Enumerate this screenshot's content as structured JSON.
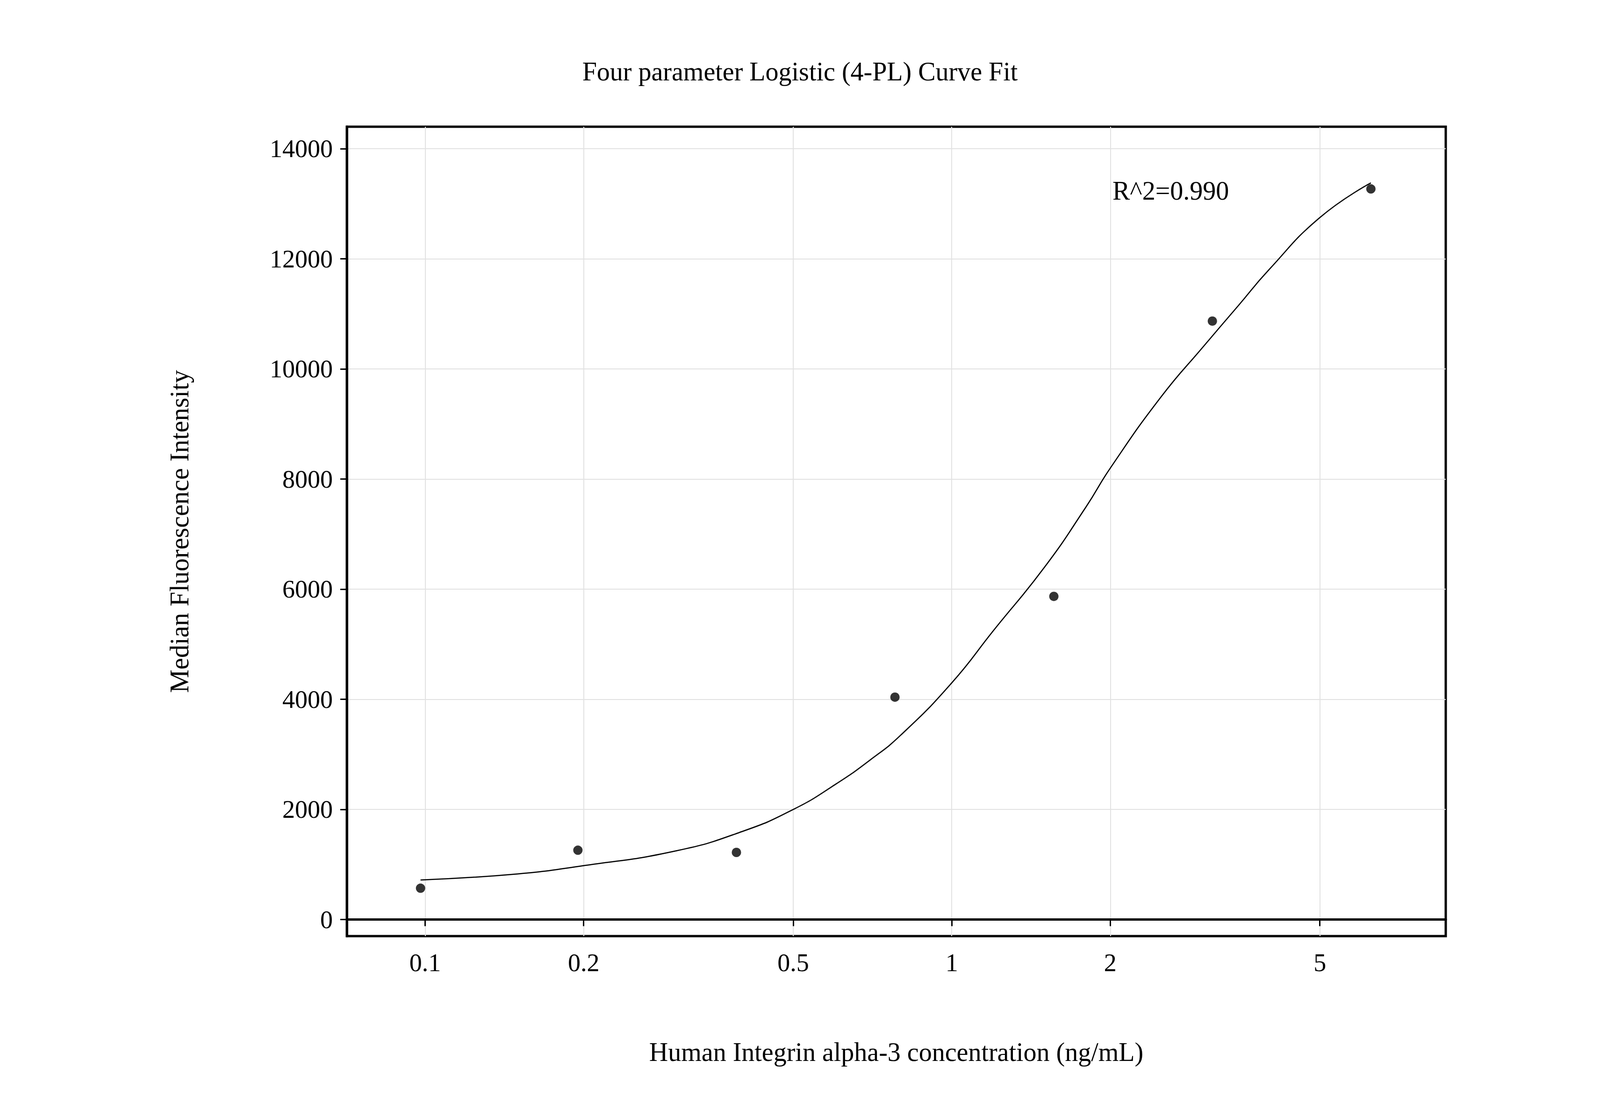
{
  "chart_data": {
    "type": "scatter",
    "title": "Four parameter Logistic (4-PL) Curve Fit",
    "x_label": "Human Integrin alpha-3 concentration (ng/mL)",
    "y_label": "Median Fluorescence Intensity",
    "annotation": "R^2=0.990",
    "log": "x",
    "grid": true,
    "xlim": [
      0.071,
      8.67
    ],
    "xticks": [
      0.1,
      0.2,
      0.5,
      1,
      2,
      5
    ],
    "ylim": [
      -300,
      14400
    ],
    "yticks": [
      0,
      2000,
      4000,
      6000,
      8000,
      10000,
      12000,
      14000
    ],
    "series": [
      {
        "type": "scatter",
        "color": "#000000",
        "marker": "circle",
        "x": [
          0.098,
          0.195,
          0.39,
          0.78,
          1.5625,
          3.125,
          6.25
        ],
        "values": [
          570,
          1260,
          1220,
          4040,
          5870,
          10870,
          13270
        ]
      },
      {
        "type": "line",
        "color": "#000000",
        "line_style": "solid",
        "x": [
          0.098,
          0.15,
          0.2,
          0.3,
          0.4,
          0.5,
          0.6,
          0.7,
          0.8,
          1,
          1.2,
          1.5,
          1.8,
          2,
          2.5,
          3,
          3.5,
          4,
          5,
          6.25
        ],
        "values": [
          720,
          830,
          980,
          1250,
          1600,
          2000,
          2450,
          2900,
          3350,
          4300,
          5250,
          6400,
          7500,
          8200,
          9500,
          10400,
          11150,
          11800,
          12750,
          13380
        ]
      }
    ]
  }
}
